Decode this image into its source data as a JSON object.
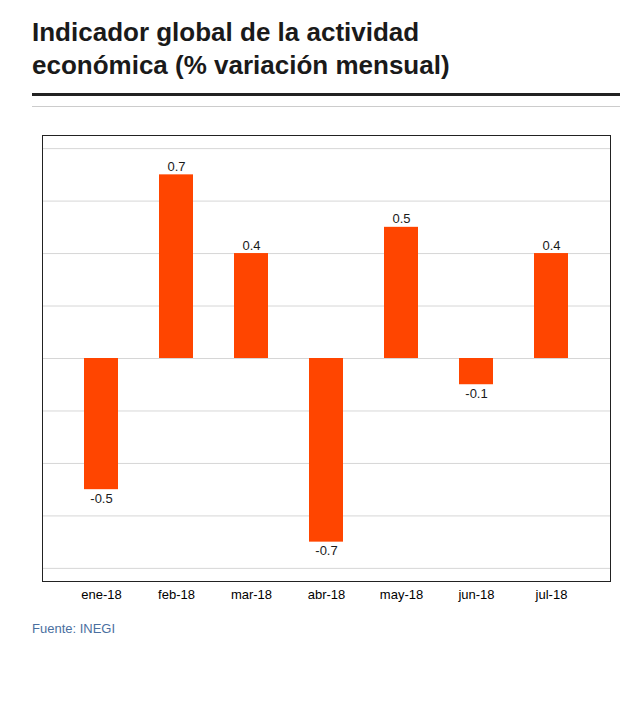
{
  "chart_data": {
    "type": "bar",
    "title": "Indicador global de la actividad\neconómica (% variación mensual)",
    "footnote": "Fuente: INEGI",
    "categories": [
      "ene-18",
      "feb-18",
      "mar-18",
      "abr-18",
      "may-18",
      "jun-18",
      "jul-18"
    ],
    "values": [
      -0.5,
      0.7,
      0.4,
      -0.7,
      0.5,
      -0.1,
      0.4
    ],
    "color": "#FF4500",
    "ylim": [
      -0.85,
      0.85
    ],
    "yticks": [
      -0.8,
      -0.6,
      -0.4,
      -0.2,
      0.0,
      0.2,
      0.4,
      0.6,
      0.8
    ],
    "grid": true,
    "data_labels": true,
    "tick_labels": "x"
  }
}
